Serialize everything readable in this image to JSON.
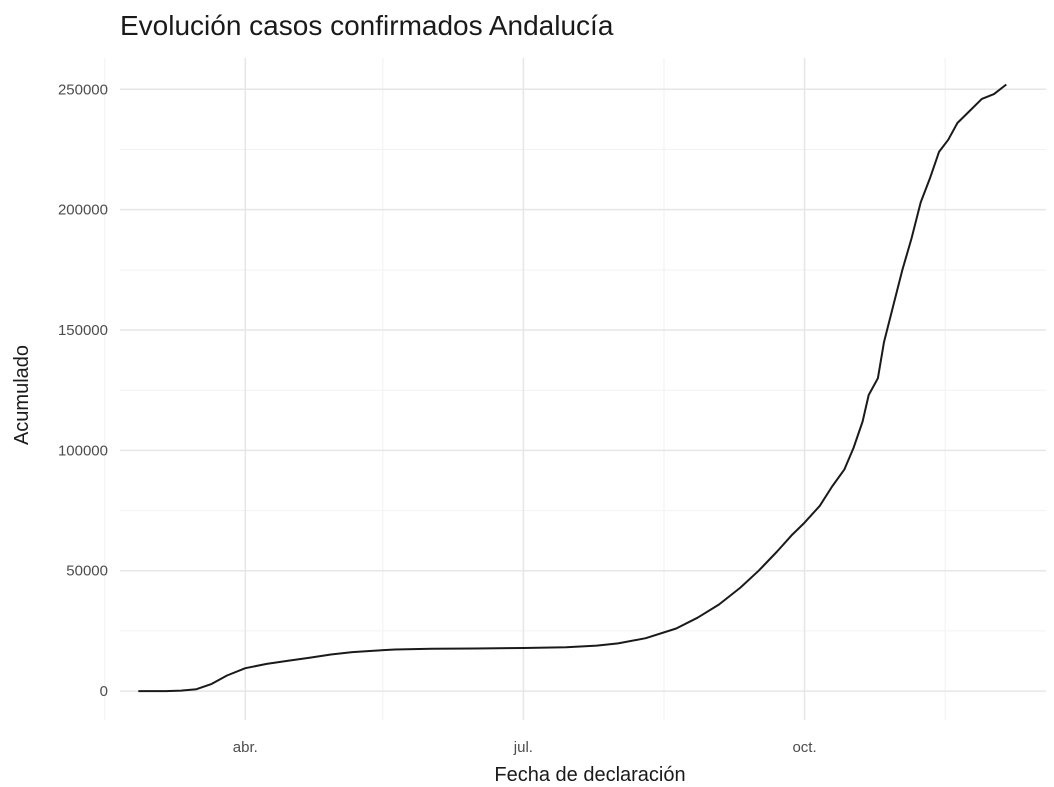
{
  "chart_data": {
    "type": "line",
    "title": "Evolución casos confirmados Andalucía",
    "xlabel": "Fecha de declaración",
    "ylabel": "Acumulado",
    "x_range": [
      "2020-02-20",
      "2020-12-19"
    ],
    "ylim": [
      -12000,
      263000
    ],
    "grid": true,
    "legend": "none",
    "line_color": "#1a1a1a",
    "x_ticks": [
      {
        "label": "abr.",
        "date": "2020-04-01"
      },
      {
        "label": "jul.",
        "date": "2020-07-01"
      },
      {
        "label": "oct.",
        "date": "2020-10-01"
      }
    ],
    "x_minor_ticks": [
      "2020-02-15",
      "2020-05-16",
      "2020-08-16",
      "2020-11-16"
    ],
    "y_ticks": [
      0,
      50000,
      100000,
      150000,
      200000,
      250000
    ],
    "series": [
      {
        "points": [
          [
            "2020-02-26",
            0
          ],
          [
            "2020-03-06",
            0
          ],
          [
            "2020-03-11",
            200
          ],
          [
            "2020-03-16",
            800
          ],
          [
            "2020-03-21",
            3000
          ],
          [
            "2020-03-26",
            6500
          ],
          [
            "2020-04-01",
            9500
          ],
          [
            "2020-04-08",
            11300
          ],
          [
            "2020-04-15",
            12600
          ],
          [
            "2020-04-22",
            13900
          ],
          [
            "2020-04-29",
            15200
          ],
          [
            "2020-05-06",
            16200
          ],
          [
            "2020-05-13",
            16800
          ],
          [
            "2020-05-20",
            17300
          ],
          [
            "2020-06-01",
            17600
          ],
          [
            "2020-06-15",
            17700
          ],
          [
            "2020-07-01",
            17900
          ],
          [
            "2020-07-15",
            18200
          ],
          [
            "2020-07-25",
            18900
          ],
          [
            "2020-08-01",
            19800
          ],
          [
            "2020-08-10",
            22000
          ],
          [
            "2020-08-20",
            26000
          ],
          [
            "2020-08-27",
            30500
          ],
          [
            "2020-09-03",
            36000
          ],
          [
            "2020-09-10",
            43000
          ],
          [
            "2020-09-16",
            50000
          ],
          [
            "2020-09-22",
            58000
          ],
          [
            "2020-09-27",
            65000
          ],
          [
            "2020-10-01",
            70000
          ],
          [
            "2020-10-06",
            77000
          ],
          [
            "2020-10-10",
            85000
          ],
          [
            "2020-10-14",
            92000
          ],
          [
            "2020-10-17",
            101000
          ],
          [
            "2020-10-20",
            112000
          ],
          [
            "2020-10-22",
            123000
          ],
          [
            "2020-10-25",
            130000
          ],
          [
            "2020-10-27",
            145000
          ],
          [
            "2020-10-30",
            160000
          ],
          [
            "2020-11-02",
            175000
          ],
          [
            "2020-11-05",
            188000
          ],
          [
            "2020-11-08",
            203000
          ],
          [
            "2020-11-11",
            213000
          ],
          [
            "2020-11-14",
            224000
          ],
          [
            "2020-11-17",
            229000
          ],
          [
            "2020-11-20",
            236000
          ],
          [
            "2020-11-24",
            241000
          ],
          [
            "2020-11-28",
            246000
          ],
          [
            "2020-12-02",
            248000
          ],
          [
            "2020-12-06",
            252000
          ]
        ]
      }
    ]
  }
}
